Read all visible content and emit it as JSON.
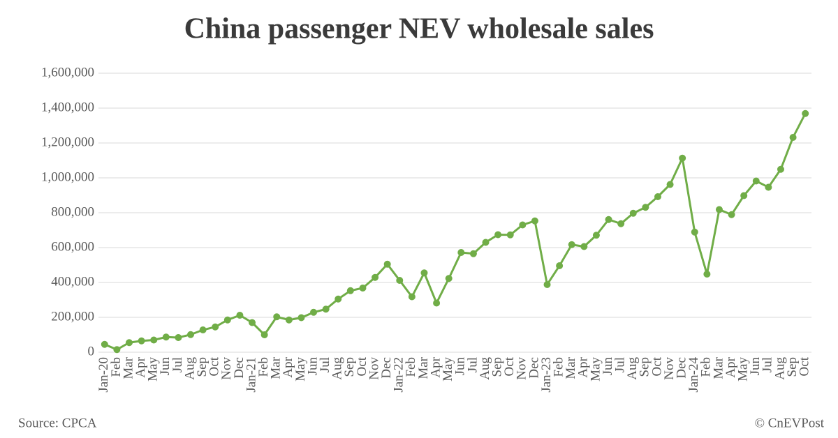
{
  "chart_data": {
    "type": "line",
    "title": "China passenger NEV wholesale sales",
    "source": "Source: CPCA",
    "credit": "© CnEVPost",
    "categories": [
      "Jan-20",
      "Feb",
      "Mar",
      "Apr",
      "May",
      "Jun",
      "Jul",
      "Aug",
      "Sep",
      "Oct",
      "Nov",
      "Dec",
      "Jan-21",
      "Feb",
      "Mar",
      "Apr",
      "May",
      "Jun",
      "Jul",
      "Aug",
      "Sep",
      "Oct",
      "Nov",
      "Dec",
      "Jan-22",
      "Feb",
      "Mar",
      "Apr",
      "May",
      "Jun",
      "Jul",
      "Aug",
      "Sep",
      "Oct",
      "Nov",
      "Dec",
      "Jan-23",
      "Feb",
      "Mar",
      "Apr",
      "May",
      "Jun",
      "Jul",
      "Aug",
      "Sep",
      "Oct",
      "Nov",
      "Dec",
      "Jan-24",
      "Feb",
      "Mar",
      "Apr",
      "May",
      "Jun",
      "Jul",
      "Aug",
      "Sep",
      "Oct"
    ],
    "series": [
      {
        "name": "NEV wholesale sales",
        "color": "#70ad47",
        "values": [
          45000,
          15000,
          55000,
          65000,
          70000,
          87000,
          84000,
          101000,
          128000,
          145000,
          185000,
          212000,
          170000,
          100000,
          203000,
          185000,
          198000,
          229000,
          247000,
          305000,
          353000,
          368000,
          429000,
          505000,
          412000,
          318000,
          455000,
          282000,
          423000,
          572000,
          565000,
          630000,
          674000,
          673000,
          730000,
          753000,
          388000,
          496000,
          617000,
          606000,
          671000,
          761000,
          737000,
          797000,
          831000,
          892000,
          962000,
          1113000,
          689000,
          448000,
          818000,
          789000,
          898000,
          982000,
          946000,
          1049000,
          1232000,
          1369000
        ]
      }
    ],
    "ylim": [
      0,
      1600000
    ],
    "yticks": [
      0,
      {
        "value": 200000,
        "label": "200,000"
      },
      {
        "value": 400000,
        "label": "400,000"
      },
      {
        "value": 600000,
        "label": "600,000"
      },
      {
        "value": 800000,
        "label": "800,000"
      },
      {
        "value": 1000000,
        "label": "1,000,000"
      },
      {
        "value": 1200000,
        "label": "1,200,000"
      },
      {
        "value": 1400000,
        "label": "1,400,000"
      },
      {
        "value": 1600000,
        "label": "1,600,000"
      }
    ],
    "grid": true
  }
}
